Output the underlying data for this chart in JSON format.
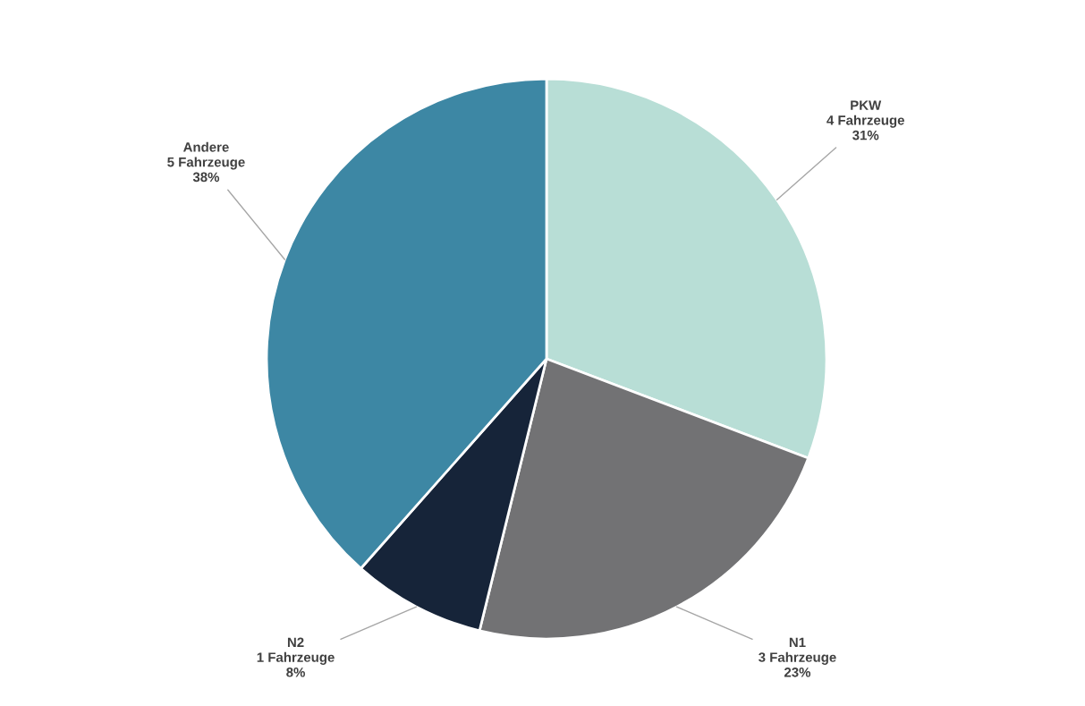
{
  "chart_data": {
    "type": "pie",
    "categories": [
      "PKW",
      "N1",
      "N2",
      "Andere"
    ],
    "values": [
      4,
      3,
      1,
      5
    ],
    "colors": [
      "#b8ded6",
      "#727274",
      "#162439",
      "#3d87a4"
    ],
    "value_labels": [
      "4 Fahrzeuge\n31%",
      "3 Fahrzeuge\n23%",
      "1 Fahrzeuge\n8%",
      "5 Fahrzeuge\n38%"
    ]
  }
}
